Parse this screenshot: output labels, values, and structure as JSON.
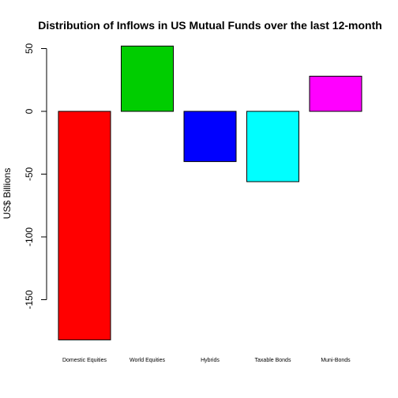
{
  "chart_data": {
    "type": "bar",
    "title": "Distribution of Inflows in US Mutual Funds  over the last 12-month",
    "xlabel": "",
    "ylabel": "US$ Billions",
    "categories": [
      "Domestic Equities",
      "World Equities",
      "Hybrids",
      "Taxable Bonds",
      "Muni-Bonds"
    ],
    "values": [
      -182,
      52,
      -40,
      -56,
      28
    ],
    "colors": [
      "#ff0000",
      "#00cd00",
      "#0000ff",
      "#00ffff",
      "#ff00ff"
    ],
    "ylim": [
      -182,
      52
    ],
    "yticks": [
      -150,
      -100,
      -50,
      0,
      50
    ],
    "ytick_labels": [
      "-150",
      "-100",
      "-50",
      "0",
      "50"
    ],
    "grid": false,
    "legend": "none"
  }
}
